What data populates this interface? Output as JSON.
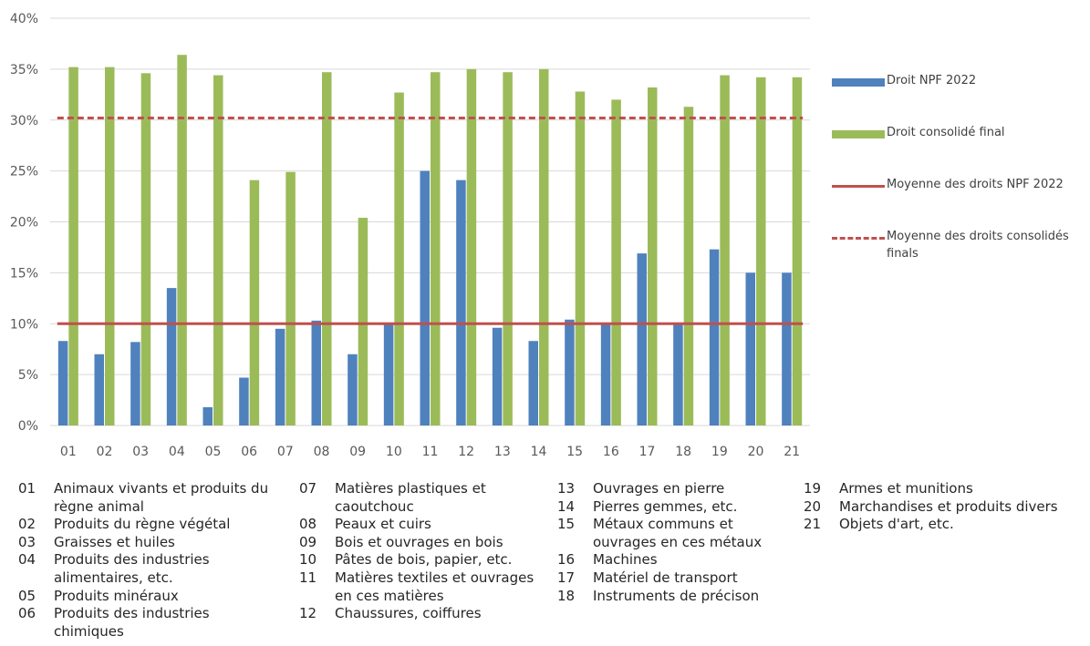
{
  "chart_data": {
    "type": "bar",
    "categories": [
      "01",
      "02",
      "03",
      "04",
      "05",
      "06",
      "07",
      "08",
      "09",
      "10",
      "11",
      "12",
      "13",
      "14",
      "15",
      "16",
      "17",
      "18",
      "19",
      "20",
      "21"
    ],
    "series": [
      {
        "name": "Droit NPF 2022",
        "color": "#4f81bd",
        "values": [
          8.3,
          7.0,
          8.2,
          13.5,
          1.8,
          4.7,
          9.5,
          10.3,
          7.0,
          10.0,
          25.0,
          24.1,
          9.6,
          8.3,
          10.4,
          10.0,
          16.9,
          10.1,
          17.3,
          15.0,
          15.0
        ]
      },
      {
        "name": "Droit consolidé final",
        "color": "#9bbb59",
        "values": [
          35.2,
          35.2,
          34.6,
          36.4,
          34.4,
          24.1,
          24.9,
          34.7,
          20.4,
          32.7,
          34.7,
          35.0,
          34.7,
          35.0,
          32.8,
          32.0,
          33.2,
          31.3,
          34.4,
          34.2,
          34.2
        ]
      }
    ],
    "reference_lines": [
      {
        "name": "Moyenne des droits NPF 2022",
        "value": 10.0,
        "style": "solid",
        "color": "#c0504d"
      },
      {
        "name": "Moyenne des droits consolidés finals",
        "value": 30.2,
        "style": "dashed",
        "color": "#c0504d"
      }
    ],
    "y_ticks": [
      "0%",
      "5%",
      "10%",
      "15%",
      "20%",
      "25%",
      "30%",
      "35%",
      "40%"
    ],
    "ylim": [
      0,
      40
    ],
    "grid": true,
    "legend_position": "right",
    "title": "",
    "xlabel": "",
    "ylabel": ""
  },
  "legend": [
    {
      "label": "Droit NPF 2022"
    },
    {
      "label": "Droit consolidé final"
    },
    {
      "label": "Moyenne des droits NPF 2022"
    },
    {
      "label": "Moyenne des droits consolidés finals"
    }
  ],
  "notes": {
    "col1": [
      {
        "code": "01",
        "text": "Animaux vivants et produits du règne animal"
      },
      {
        "code": "02",
        "text": "Produits du règne végétal"
      },
      {
        "code": "03",
        "text": "Graisses et huiles"
      },
      {
        "code": "04",
        "text": "Produits des industries alimentaires, etc."
      },
      {
        "code": "05",
        "text": "Produits minéraux"
      },
      {
        "code": "06",
        "text": "Produits des industries chimiques"
      }
    ],
    "col2": [
      {
        "code": "07",
        "text": "Matières plastiques et caoutchouc"
      },
      {
        "code": "08",
        "text": "Peaux et cuirs"
      },
      {
        "code": "09",
        "text": "Bois et ouvrages en bois"
      },
      {
        "code": "10",
        "text": "Pâtes de bois, papier, etc."
      },
      {
        "code": "11",
        "text": "Matières textiles et ouvrages en ces matières"
      },
      {
        "code": "12",
        "text": "Chaussures, coiffures"
      }
    ],
    "col3": [
      {
        "code": "13",
        "text": "Ouvrages en pierre"
      },
      {
        "code": "14",
        "text": "Pierres gemmes, etc."
      },
      {
        "code": "15",
        "text": "Métaux communs et ouvrages en ces métaux"
      },
      {
        "code": "16",
        "text": "Machines"
      },
      {
        "code": "17",
        "text": "Matériel de transport"
      },
      {
        "code": "18",
        "text": "Instruments de précison"
      }
    ],
    "col4": [
      {
        "code": "19",
        "text": "Armes et munitions"
      },
      {
        "code": "20",
        "text": "Marchandises et produits divers"
      },
      {
        "code": "21",
        "text": "Objets d'art, etc."
      }
    ]
  }
}
